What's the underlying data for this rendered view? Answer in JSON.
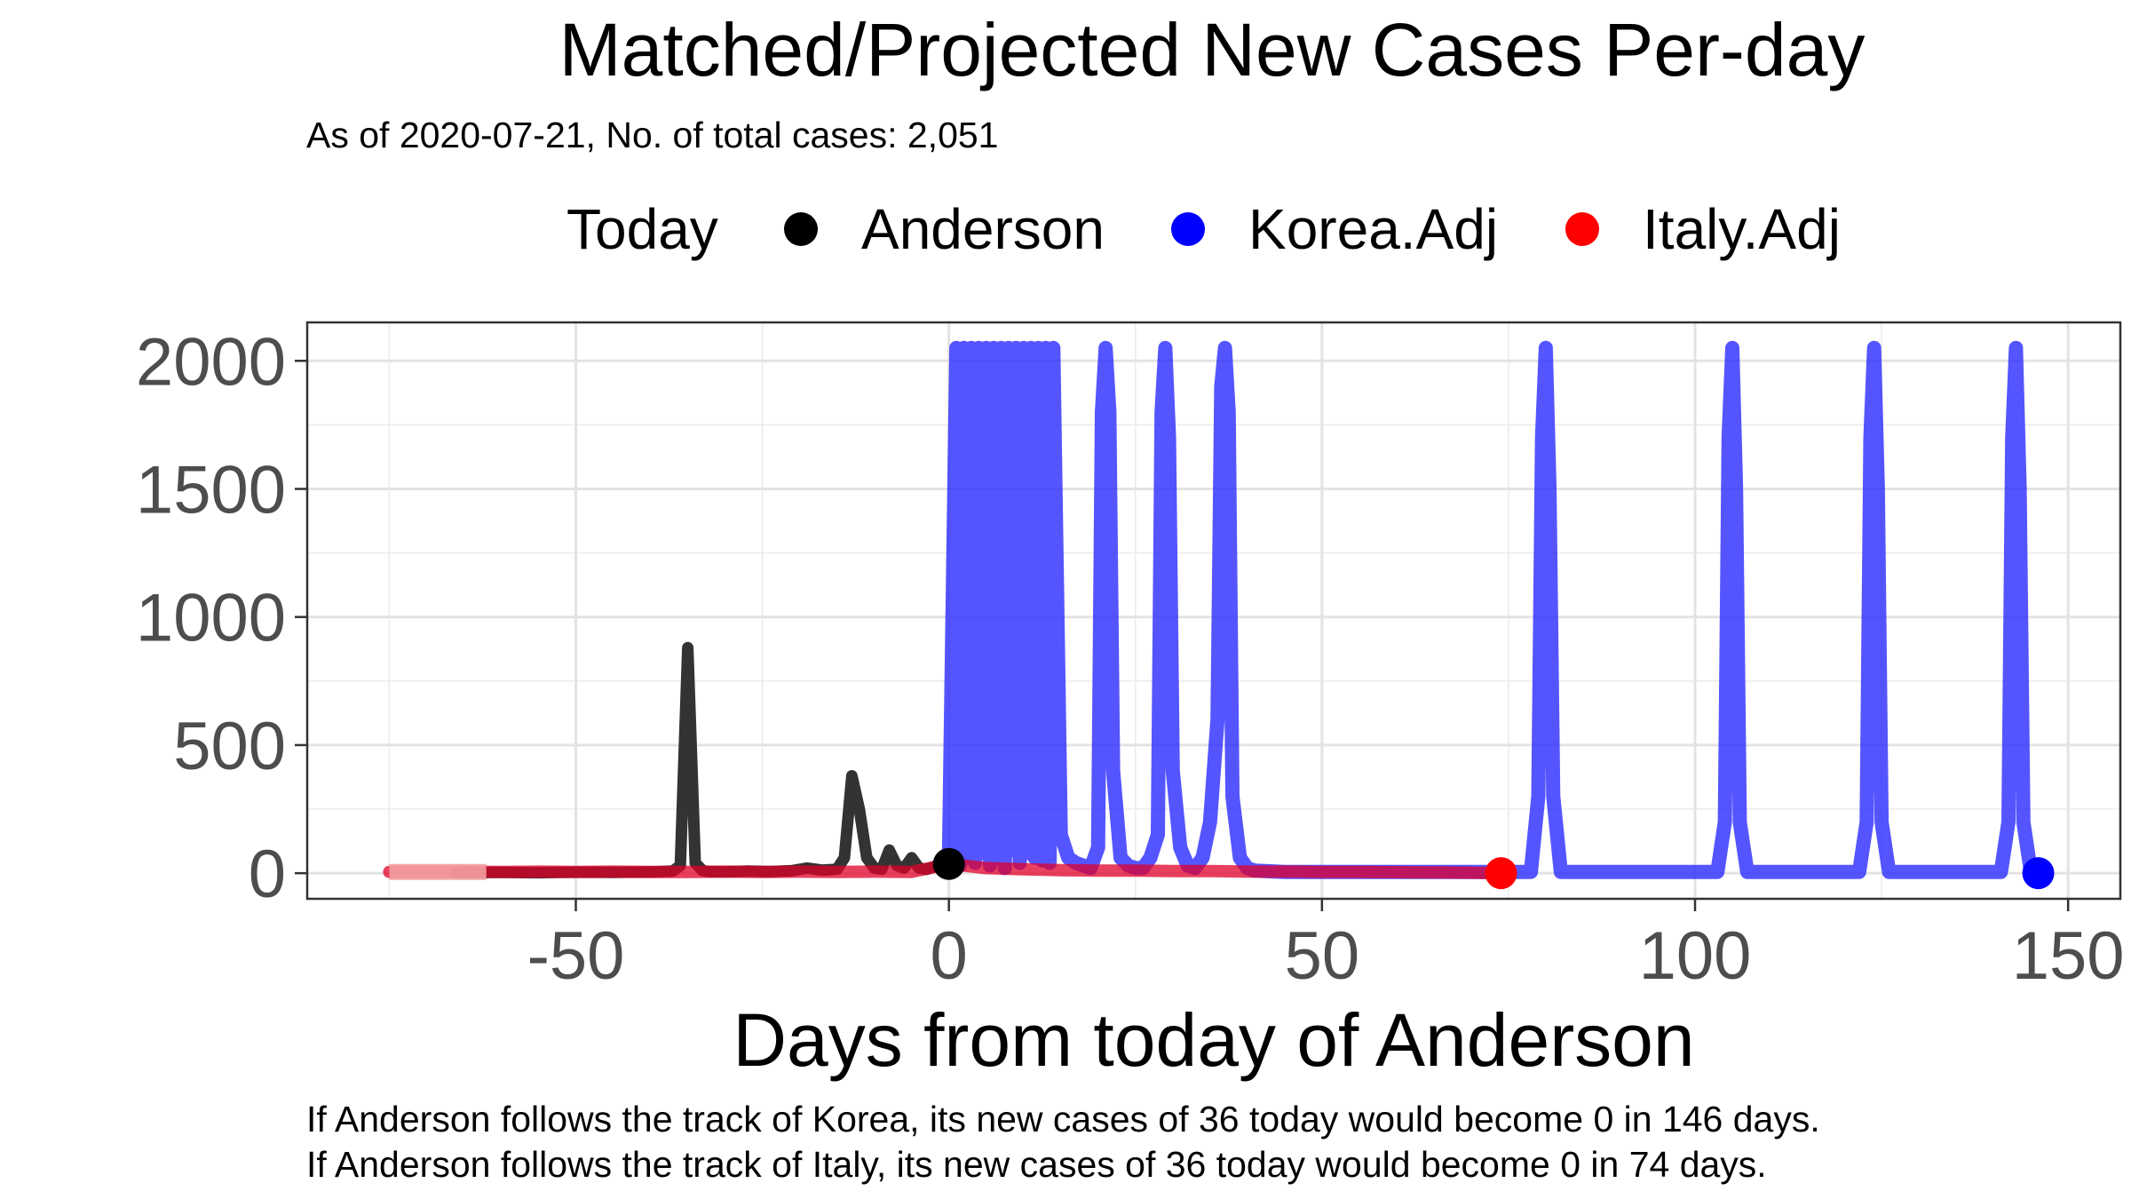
{
  "chart_data": {
    "type": "line",
    "title": "Matched/Projected New Cases Per-day",
    "subtitle": "As of 2020-07-21, No. of total cases: 2,051",
    "xlabel": "Days from today of Anderson",
    "ylabel": "",
    "xlim": [
      -86,
      157
    ],
    "ylim": [
      -100,
      2150
    ],
    "x_ticks": [
      -50,
      0,
      50,
      100,
      150
    ],
    "y_ticks": [
      0,
      500,
      1000,
      1500,
      2000
    ],
    "x_tick_labels": [
      "-50",
      "0",
      "50",
      "100",
      "150"
    ],
    "y_tick_labels": [
      "0",
      "500",
      "1000",
      "1500",
      "2000"
    ],
    "grid": true,
    "legend": {
      "title": "Today",
      "position": "top",
      "entries": [
        {
          "label": "Anderson",
          "color": "#000000"
        },
        {
          "label": "Korea.Adj",
          "color": "#0000ff"
        },
        {
          "label": "Italy.Adj",
          "color": "#ff0000"
        }
      ]
    },
    "series": [
      {
        "name": "Anderson",
        "color": "#333333",
        "x": [
          -66,
          -60,
          -55,
          -50,
          -45,
          -40,
          -37,
          -36,
          -35,
          -34,
          -33,
          -32,
          -30,
          -27,
          -24,
          -21,
          -19,
          -17,
          -15,
          -14,
          -13,
          -12,
          -11,
          -10,
          -9,
          -8,
          -7,
          -6,
          -5,
          -4,
          -3,
          -2,
          -1,
          0
        ],
        "y": [
          2,
          3,
          2,
          4,
          3,
          5,
          8,
          30,
          880,
          40,
          10,
          6,
          5,
          8,
          6,
          10,
          20,
          12,
          15,
          60,
          380,
          250,
          60,
          20,
          15,
          90,
          30,
          20,
          60,
          20,
          15,
          25,
          40,
          36
        ]
      },
      {
        "name": "Korea.Adj",
        "color": "#2f2fff",
        "x": [
          0,
          1,
          1.5,
          2,
          2.5,
          3,
          3.5,
          4,
          4.5,
          5,
          5.5,
          6,
          6.5,
          7,
          7.5,
          8,
          8.5,
          9,
          9.5,
          10,
          10.5,
          11,
          11.5,
          12,
          12.5,
          13,
          13.5,
          14,
          15,
          16,
          17,
          18,
          19,
          20,
          20.5,
          21,
          21.5,
          22,
          23,
          24,
          25,
          26,
          27,
          28,
          28.5,
          29,
          29.5,
          30,
          31,
          32,
          33,
          34,
          35,
          36,
          36.5,
          37,
          37.5,
          38,
          39,
          40,
          41,
          45,
          50,
          55,
          60,
          65,
          70,
          75,
          78,
          79,
          79.5,
          80,
          80.5,
          81,
          82,
          85,
          90,
          95,
          100,
          103,
          104,
          104.5,
          105,
          105.5,
          106,
          107,
          110,
          115,
          120,
          122,
          123,
          123.5,
          124,
          124.5,
          125,
          126,
          130,
          135,
          140,
          141,
          142,
          142.5,
          143,
          143.5,
          144,
          145,
          146
        ],
        "y": [
          50,
          2050,
          30,
          2050,
          60,
          2050,
          40,
          2050,
          80,
          2050,
          30,
          2050,
          60,
          2050,
          20,
          2050,
          90,
          2050,
          40,
          2050,
          80,
          2050,
          60,
          2050,
          50,
          2050,
          40,
          2050,
          150,
          60,
          40,
          30,
          20,
          100,
          1800,
          2050,
          1800,
          400,
          60,
          30,
          20,
          20,
          60,
          150,
          1800,
          2050,
          1700,
          400,
          100,
          30,
          20,
          60,
          200,
          600,
          1900,
          2050,
          1800,
          300,
          60,
          20,
          10,
          5,
          5,
          5,
          5,
          5,
          5,
          5,
          5,
          300,
          1700,
          2050,
          1500,
          300,
          5,
          5,
          5,
          5,
          5,
          5,
          200,
          1700,
          2050,
          1500,
          200,
          5,
          5,
          5,
          5,
          5,
          200,
          1700,
          2050,
          1500,
          200,
          5,
          5,
          5,
          5,
          5,
          200,
          1700,
          2050,
          1500,
          200,
          5,
          0
        ]
      },
      {
        "name": "Italy.Adj",
        "color": "#e0002a",
        "x": [
          -75,
          -70,
          -65,
          -60,
          -55,
          -50,
          -45,
          -40,
          -35,
          -30,
          -25,
          -20,
          -15,
          -10,
          -5,
          0,
          5,
          10,
          15,
          20,
          25,
          30,
          35,
          40,
          45,
          50,
          55,
          60,
          65,
          70,
          74
        ],
        "y": [
          5,
          5,
          6,
          5,
          6,
          5,
          6,
          5,
          5,
          6,
          5,
          6,
          5,
          6,
          5,
          36,
          20,
          15,
          12,
          10,
          10,
          8,
          8,
          6,
          6,
          5,
          5,
          4,
          3,
          2,
          0
        ]
      }
    ],
    "markers": [
      {
        "series": "Anderson",
        "x": 0,
        "y": 36,
        "color": "#000000"
      },
      {
        "series": "Italy.Adj",
        "x": 74,
        "y": 0,
        "color": "#ff0000"
      },
      {
        "series": "Korea.Adj",
        "x": 146,
        "y": 0,
        "color": "#0000ff"
      }
    ],
    "annotations": [
      "If Anderson follows the track of Korea, its new cases of 36 today would become 0 in 146 days.",
      "If Anderson follows the track of Italy, its new cases of 36 today would become 0 in 74 days."
    ]
  }
}
